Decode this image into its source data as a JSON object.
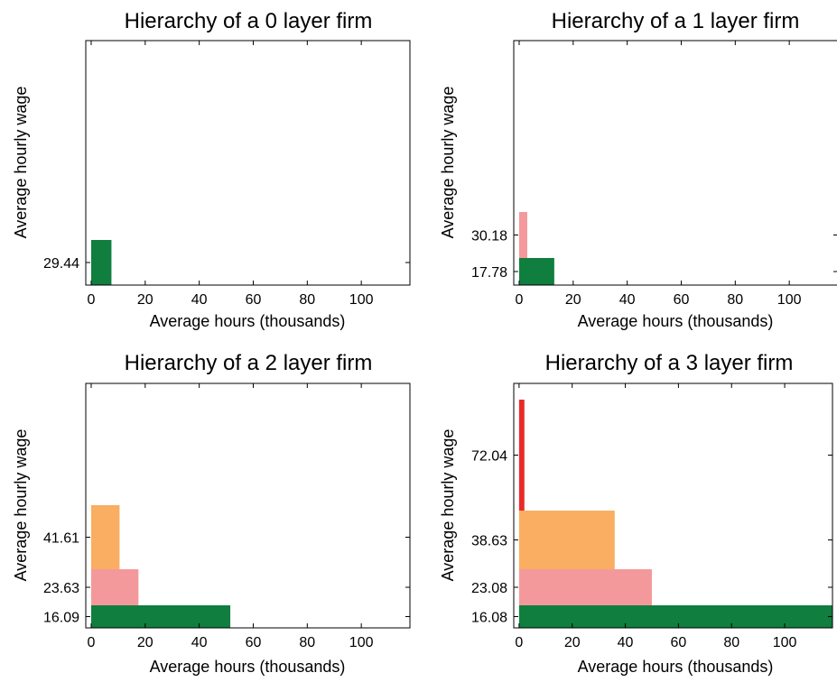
{
  "chart_data": [
    {
      "type": "bar",
      "title": "Hierarchy of a 0 layer firm",
      "xlabel": "Average hours (thousands)",
      "ylabel": "Average hourly wage",
      "xlim": [
        -2,
        118
      ],
      "xticks": [
        0,
        20,
        40,
        60,
        80,
        100
      ],
      "yticks": [
        29.44
      ],
      "grid": false,
      "layers": [
        {
          "wage": 29.44,
          "hours": 7.5,
          "color": "#0f7e3f"
        }
      ]
    },
    {
      "type": "bar",
      "title": "Hierarchy of a 1 layer firm",
      "xlabel": "Average hours (thousands)",
      "ylabel": "Average hourly wage",
      "xlim": [
        -2,
        118
      ],
      "xticks": [
        0,
        20,
        40,
        60,
        80,
        100
      ],
      "yticks": [
        30.18,
        17.78
      ],
      "grid": false,
      "layers": [
        {
          "wage": 17.78,
          "hours": 13,
          "color": "#0f7e3f"
        },
        {
          "wage": 30.18,
          "hours": 3,
          "color": "#f4999b"
        }
      ]
    },
    {
      "type": "bar",
      "title": "Hierarchy of a 2 layer firm",
      "xlabel": "Average hours (thousands)",
      "ylabel": "Average hourly wage",
      "xlim": [
        -2,
        118
      ],
      "xticks": [
        0,
        20,
        40,
        60,
        80,
        100
      ],
      "yticks": [
        41.61,
        23.63,
        16.09
      ],
      "grid": false,
      "layers": [
        {
          "wage": 16.09,
          "hours": 51.5,
          "color": "#0f7e3f"
        },
        {
          "wage": 23.63,
          "hours": 17.5,
          "color": "#f4999b"
        },
        {
          "wage": 41.61,
          "hours": 10.5,
          "color": "#f9ae62"
        }
      ]
    },
    {
      "type": "bar",
      "title": "Hierarchy of a 3 layer firm",
      "xlabel": "Average hours (thousands)",
      "ylabel": "Average hourly wage",
      "xlim": [
        -2,
        118
      ],
      "xticks": [
        0,
        20,
        40,
        60,
        80,
        100
      ],
      "yticks": [
        72.04,
        38.63,
        23.08,
        16.08
      ],
      "grid": false,
      "layers": [
        {
          "wage": 16.08,
          "hours": 118,
          "color": "#0f7e3f"
        },
        {
          "wage": 23.08,
          "hours": 50,
          "color": "#f4999b"
        },
        {
          "wage": 38.63,
          "hours": 36,
          "color": "#f9ae62"
        },
        {
          "wage": 72.04,
          "hours": 2,
          "color": "#ea2a2a"
        }
      ]
    }
  ]
}
